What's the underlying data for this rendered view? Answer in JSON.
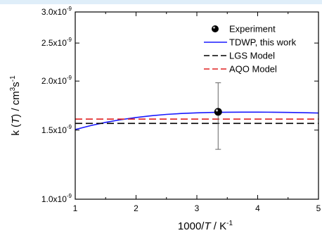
{
  "chart_data": {
    "type": "line",
    "title": "",
    "xlabel": {
      "pre": "1000/",
      "var": "T",
      "post": " / K",
      "sup": "-1"
    },
    "ylabel": {
      "pre": "k (",
      "var": "T",
      "post": ") / cm",
      "sup1": "3",
      "mid": "s",
      "sup2": "-1"
    },
    "xlim": [
      1,
      5
    ],
    "ylim": [
      1e-09,
      3e-09
    ],
    "yscale": "log",
    "grid": false,
    "legend_position": "top-right",
    "x_ticks": [
      {
        "value": 1,
        "label": "1"
      },
      {
        "value": 2,
        "label": "2"
      },
      {
        "value": 3,
        "label": "3"
      },
      {
        "value": 4,
        "label": "4"
      },
      {
        "value": 5,
        "label": "5"
      }
    ],
    "y_ticks": [
      {
        "value": 1e-09,
        "mant": "1.0x10",
        "exp": "-9"
      },
      {
        "value": 1.5e-09,
        "mant": "1.5x10",
        "exp": "-9"
      },
      {
        "value": 2e-09,
        "mant": "2.0x10",
        "exp": "-9"
      },
      {
        "value": 2.5e-09,
        "mant": "2.5x10",
        "exp": "-9"
      },
      {
        "value": 3e-09,
        "mant": "3.0x10",
        "exp": "-9"
      }
    ],
    "series": [
      {
        "name": "Experiment",
        "kind": "point",
        "color": "#000000",
        "x": [
          3.35
        ],
        "y": [
          1.67e-09
        ],
        "err_low": [
          1.34e-09
        ],
        "err_high": [
          1.98e-09
        ]
      },
      {
        "name": "TDWP, this work",
        "kind": "line",
        "color": "#1a1aff",
        "dash": "",
        "x": [
          1.0,
          1.25,
          1.5,
          1.75,
          2.0,
          2.25,
          2.5,
          2.75,
          3.0,
          3.25,
          3.5,
          3.75,
          4.0,
          4.25,
          4.5,
          4.75,
          5.0
        ],
        "y": [
          1.505e-09,
          1.54e-09,
          1.57e-09,
          1.595e-09,
          1.615e-09,
          1.632e-09,
          1.645e-09,
          1.654e-09,
          1.66e-09,
          1.664e-09,
          1.666e-09,
          1.667e-09,
          1.667e-09,
          1.666e-09,
          1.664e-09,
          1.661e-09,
          1.658e-09
        ]
      },
      {
        "name": "LGS Model",
        "kind": "line",
        "color": "#000000",
        "dash": "10,5",
        "x": [
          1,
          5
        ],
        "y": [
          1.56e-09,
          1.56e-09
        ]
      },
      {
        "name": "AQO Model",
        "kind": "line",
        "color": "#e02020",
        "dash": "10,5",
        "x": [
          1,
          5
        ],
        "y": [
          1.6e-09,
          1.6e-09
        ]
      }
    ]
  }
}
